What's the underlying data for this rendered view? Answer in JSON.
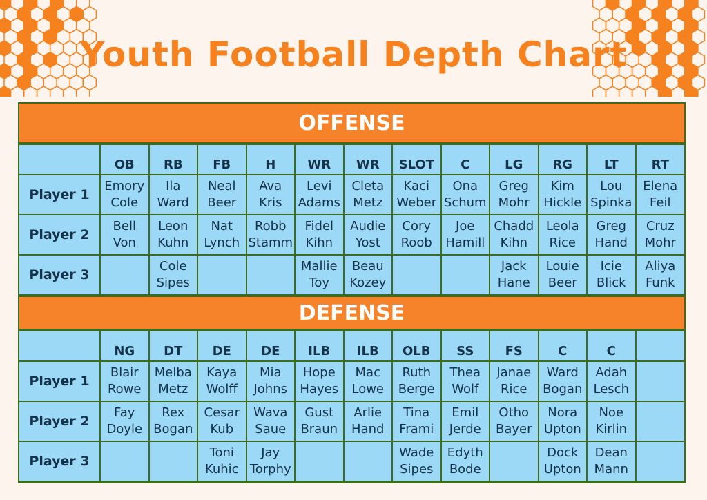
{
  "title": "Youth Football Depth Chart",
  "colors": {
    "accent": "#f6821f",
    "cell_fill": "#9bd9f7",
    "border": "#3f6b1f",
    "background": "#fdf4ee"
  },
  "offense": {
    "heading": "OFFENSE",
    "positions": [
      "OB",
      "RB",
      "FB",
      "H",
      "WR",
      "WR",
      "SLOT",
      "C",
      "LG",
      "RG",
      "LT",
      "RT"
    ],
    "rows": [
      {
        "label": "Player 1",
        "cells": [
          [
            "Emory",
            "Cole"
          ],
          [
            "Ila",
            "Ward"
          ],
          [
            "Neal",
            "Beer"
          ],
          [
            "Ava",
            "Kris"
          ],
          [
            "Levi",
            "Adams"
          ],
          [
            "Cleta",
            "Metz"
          ],
          [
            "Kaci",
            "Weber"
          ],
          [
            "Ona",
            "Schum"
          ],
          [
            "Greg",
            "Mohr"
          ],
          [
            "Kim",
            "Hickle"
          ],
          [
            "Lou",
            "Spinka"
          ],
          [
            "Elena",
            "Feil"
          ]
        ]
      },
      {
        "label": "Player 2",
        "cells": [
          [
            "Bell",
            "Von"
          ],
          [
            "Leon",
            "Kuhn"
          ],
          [
            "Nat",
            "Lynch"
          ],
          [
            "Robb",
            "Stamm"
          ],
          [
            "Fidel",
            "Kihn"
          ],
          [
            "Audie",
            "Yost"
          ],
          [
            "Cory",
            "Roob"
          ],
          [
            "Joe",
            "Hamill"
          ],
          [
            "Chadd",
            "Kihn"
          ],
          [
            "Leola",
            "Rice"
          ],
          [
            "Greg",
            "Hand"
          ],
          [
            "Cruz",
            "Mohr"
          ]
        ]
      },
      {
        "label": "Player 3",
        "cells": [
          [],
          [
            "Cole",
            "Sipes"
          ],
          [],
          [],
          [
            "Mallie",
            "Toy"
          ],
          [
            "Beau",
            "Kozey"
          ],
          [],
          [],
          [
            "Jack",
            "Hane"
          ],
          [
            "Louie",
            "Beer"
          ],
          [
            "Icie",
            "Blick"
          ],
          [
            "Aliya",
            "Funk"
          ]
        ]
      }
    ]
  },
  "defense": {
    "heading": "DEFENSE",
    "positions": [
      "NG",
      "DT",
      "DE",
      "DE",
      "ILB",
      "ILB",
      "OLB",
      "SS",
      "FS",
      "C",
      "C",
      ""
    ],
    "rows": [
      {
        "label": "Player 1",
        "cells": [
          [
            "Blair",
            "Rowe"
          ],
          [
            "Melba",
            "Metz"
          ],
          [
            "Kaya",
            "Wolff"
          ],
          [
            "Mia",
            "Johns"
          ],
          [
            "Hope",
            "Hayes"
          ],
          [
            "Mac",
            "Lowe"
          ],
          [
            "Ruth",
            "Berge"
          ],
          [
            "Thea",
            "Wolf"
          ],
          [
            "Janae",
            "Rice"
          ],
          [
            "Ward",
            "Bogan"
          ],
          [
            "Adah",
            "Lesch"
          ],
          []
        ]
      },
      {
        "label": "Player 2",
        "cells": [
          [
            "Fay",
            "Doyle"
          ],
          [
            "Rex",
            "Bogan"
          ],
          [
            "Cesar",
            "Kub"
          ],
          [
            "Wava",
            "Saue"
          ],
          [
            "Gust",
            "Braun"
          ],
          [
            "Arlie",
            "Hand"
          ],
          [
            "Tina",
            "Frami"
          ],
          [
            "Emil",
            "Jerde"
          ],
          [
            "Otho",
            "Bayer"
          ],
          [
            "Nora",
            "Upton"
          ],
          [
            "Noe",
            "Kirlin"
          ],
          []
        ]
      },
      {
        "label": "Player 3",
        "cells": [
          [],
          [],
          [
            "Toni",
            "Kuhic"
          ],
          [
            "Jay",
            "Torphy"
          ],
          [],
          [],
          [
            "Wade",
            "Sipes"
          ],
          [
            "Edyth",
            "Bode"
          ],
          [],
          [
            "Dock",
            "Upton"
          ],
          [
            "Dean",
            "Mann"
          ],
          []
        ]
      }
    ]
  }
}
